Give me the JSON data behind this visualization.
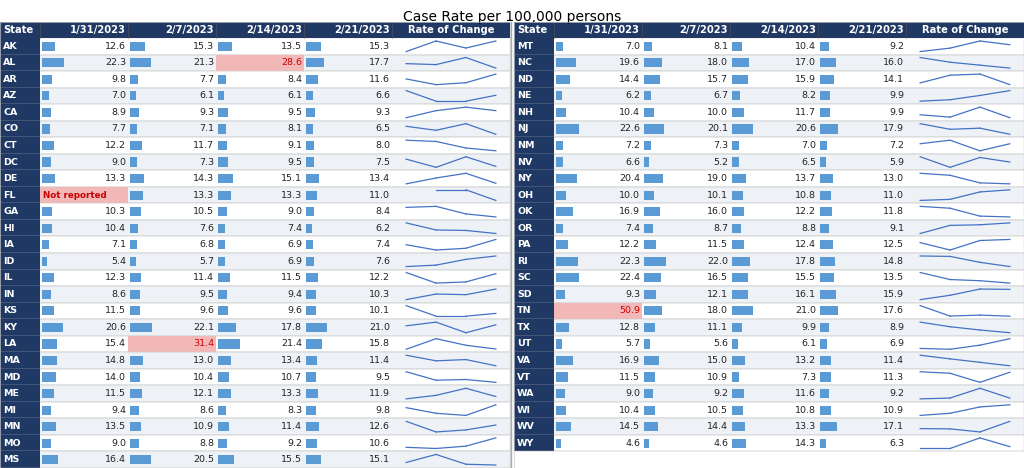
{
  "title": "Case Rate per 100,000 persons",
  "left_states": [
    {
      "state": "AK",
      "v1": 12.6,
      "v2": 15.3,
      "v3": 13.5,
      "v4": 15.3,
      "h1": false,
      "h2": false,
      "h3": false,
      "h4": false,
      "not_reported": false
    },
    {
      "state": "AL",
      "v1": 22.3,
      "v2": 21.3,
      "v3": 28.6,
      "v4": 17.7,
      "h1": false,
      "h2": false,
      "h3": true,
      "h4": false,
      "not_reported": false
    },
    {
      "state": "AR",
      "v1": 9.8,
      "v2": 7.7,
      "v3": 8.4,
      "v4": 11.6,
      "h1": false,
      "h2": false,
      "h3": false,
      "h4": false,
      "not_reported": false
    },
    {
      "state": "AZ",
      "v1": 7.0,
      "v2": 6.1,
      "v3": 6.1,
      "v4": 6.6,
      "h1": false,
      "h2": false,
      "h3": false,
      "h4": false,
      "not_reported": false
    },
    {
      "state": "CA",
      "v1": 8.9,
      "v2": 9.3,
      "v3": 9.5,
      "v4": 9.3,
      "h1": false,
      "h2": false,
      "h3": false,
      "h4": false,
      "not_reported": false
    },
    {
      "state": "CO",
      "v1": 7.7,
      "v2": 7.1,
      "v3": 8.1,
      "v4": 6.5,
      "h1": false,
      "h2": false,
      "h3": false,
      "h4": false,
      "not_reported": false
    },
    {
      "state": "CT",
      "v1": 12.2,
      "v2": 11.7,
      "v3": 9.1,
      "v4": 8.0,
      "h1": false,
      "h2": false,
      "h3": false,
      "h4": false,
      "not_reported": false
    },
    {
      "state": "DC",
      "v1": 9.0,
      "v2": 7.3,
      "v3": 9.5,
      "v4": 7.5,
      "h1": false,
      "h2": false,
      "h3": false,
      "h4": false,
      "not_reported": false
    },
    {
      "state": "DE",
      "v1": 13.3,
      "v2": 14.3,
      "v3": 15.1,
      "v4": 13.4,
      "h1": false,
      "h2": false,
      "h3": false,
      "h4": false,
      "not_reported": false
    },
    {
      "state": "FL",
      "v1": null,
      "v2": 13.3,
      "v3": 13.3,
      "v4": 11.0,
      "h1": true,
      "h2": false,
      "h3": false,
      "h4": false,
      "not_reported": true
    },
    {
      "state": "GA",
      "v1": 10.3,
      "v2": 10.5,
      "v3": 9.0,
      "v4": 8.4,
      "h1": false,
      "h2": false,
      "h3": false,
      "h4": false,
      "not_reported": false
    },
    {
      "state": "HI",
      "v1": 10.4,
      "v2": 7.6,
      "v3": 7.4,
      "v4": 6.2,
      "h1": false,
      "h2": false,
      "h3": false,
      "h4": false,
      "not_reported": false
    },
    {
      "state": "IA",
      "v1": 7.1,
      "v2": 6.8,
      "v3": 6.9,
      "v4": 7.4,
      "h1": false,
      "h2": false,
      "h3": false,
      "h4": false,
      "not_reported": false
    },
    {
      "state": "ID",
      "v1": 5.4,
      "v2": 5.7,
      "v3": 6.9,
      "v4": 7.6,
      "h1": false,
      "h2": false,
      "h3": false,
      "h4": false,
      "not_reported": false
    },
    {
      "state": "IL",
      "v1": 12.3,
      "v2": 11.4,
      "v3": 11.5,
      "v4": 12.2,
      "h1": false,
      "h2": false,
      "h3": false,
      "h4": false,
      "not_reported": false
    },
    {
      "state": "IN",
      "v1": 8.6,
      "v2": 9.5,
      "v3": 9.4,
      "v4": 10.3,
      "h1": false,
      "h2": false,
      "h3": false,
      "h4": false,
      "not_reported": false
    },
    {
      "state": "KS",
      "v1": 11.5,
      "v2": 9.6,
      "v3": 9.6,
      "v4": 10.1,
      "h1": false,
      "h2": false,
      "h3": false,
      "h4": false,
      "not_reported": false
    },
    {
      "state": "KY",
      "v1": 20.6,
      "v2": 22.1,
      "v3": 17.8,
      "v4": 21.0,
      "h1": false,
      "h2": false,
      "h3": false,
      "h4": false,
      "not_reported": false
    },
    {
      "state": "LA",
      "v1": 15.4,
      "v2": 31.4,
      "v3": 21.4,
      "v4": 15.8,
      "h1": false,
      "h2": true,
      "h3": false,
      "h4": false,
      "not_reported": false
    },
    {
      "state": "MA",
      "v1": 14.8,
      "v2": 13.0,
      "v3": 13.4,
      "v4": 11.4,
      "h1": false,
      "h2": false,
      "h3": false,
      "h4": false,
      "not_reported": false
    },
    {
      "state": "MD",
      "v1": 14.0,
      "v2": 10.4,
      "v3": 10.7,
      "v4": 9.5,
      "h1": false,
      "h2": false,
      "h3": false,
      "h4": false,
      "not_reported": false
    },
    {
      "state": "ME",
      "v1": 11.5,
      "v2": 12.1,
      "v3": 13.3,
      "v4": 11.9,
      "h1": false,
      "h2": false,
      "h3": false,
      "h4": false,
      "not_reported": false
    },
    {
      "state": "MI",
      "v1": 9.4,
      "v2": 8.6,
      "v3": 8.3,
      "v4": 9.8,
      "h1": false,
      "h2": false,
      "h3": false,
      "h4": false,
      "not_reported": false
    },
    {
      "state": "MN",
      "v1": 13.5,
      "v2": 10.9,
      "v3": 11.4,
      "v4": 12.6,
      "h1": false,
      "h2": false,
      "h3": false,
      "h4": false,
      "not_reported": false
    },
    {
      "state": "MO",
      "v1": 9.0,
      "v2": 8.8,
      "v3": 9.2,
      "v4": 10.6,
      "h1": false,
      "h2": false,
      "h3": false,
      "h4": false,
      "not_reported": false
    },
    {
      "state": "MS",
      "v1": 16.4,
      "v2": 20.5,
      "v3": 15.5,
      "v4": 15.1,
      "h1": false,
      "h2": false,
      "h3": false,
      "h4": false,
      "not_reported": false
    }
  ],
  "right_states": [
    {
      "state": "MT",
      "v1": 7.0,
      "v2": 8.1,
      "v3": 10.4,
      "v4": 9.2,
      "h1": false,
      "h2": false,
      "h3": false,
      "h4": false,
      "not_reported": false
    },
    {
      "state": "NC",
      "v1": 19.6,
      "v2": 18.0,
      "v3": 17.0,
      "v4": 16.0,
      "h1": false,
      "h2": false,
      "h3": false,
      "h4": false,
      "not_reported": false
    },
    {
      "state": "ND",
      "v1": 14.4,
      "v2": 15.7,
      "v3": 15.9,
      "v4": 14.1,
      "h1": false,
      "h2": false,
      "h3": false,
      "h4": false,
      "not_reported": false
    },
    {
      "state": "NE",
      "v1": 6.2,
      "v2": 6.7,
      "v3": 8.2,
      "v4": 9.9,
      "h1": false,
      "h2": false,
      "h3": false,
      "h4": false,
      "not_reported": false
    },
    {
      "state": "NH",
      "v1": 10.4,
      "v2": 10.0,
      "v3": 11.7,
      "v4": 9.9,
      "h1": false,
      "h2": false,
      "h3": false,
      "h4": false,
      "not_reported": false
    },
    {
      "state": "NJ",
      "v1": 22.6,
      "v2": 20.1,
      "v3": 20.6,
      "v4": 17.9,
      "h1": false,
      "h2": false,
      "h3": false,
      "h4": false,
      "not_reported": false
    },
    {
      "state": "NM",
      "v1": 7.2,
      "v2": 7.3,
      "v3": 7.0,
      "v4": 7.2,
      "h1": false,
      "h2": false,
      "h3": false,
      "h4": false,
      "not_reported": false
    },
    {
      "state": "NV",
      "v1": 6.6,
      "v2": 5.2,
      "v3": 6.5,
      "v4": 5.9,
      "h1": false,
      "h2": false,
      "h3": false,
      "h4": false,
      "not_reported": false
    },
    {
      "state": "NY",
      "v1": 20.4,
      "v2": 19.0,
      "v3": 13.7,
      "v4": 13.0,
      "h1": false,
      "h2": false,
      "h3": false,
      "h4": false,
      "not_reported": false
    },
    {
      "state": "OH",
      "v1": 10.0,
      "v2": 10.1,
      "v3": 10.8,
      "v4": 11.0,
      "h1": false,
      "h2": false,
      "h3": false,
      "h4": false,
      "not_reported": false
    },
    {
      "state": "OK",
      "v1": 16.9,
      "v2": 16.0,
      "v3": 12.2,
      "v4": 11.8,
      "h1": false,
      "h2": false,
      "h3": false,
      "h4": false,
      "not_reported": false
    },
    {
      "state": "OR",
      "v1": 7.4,
      "v2": 8.7,
      "v3": 8.8,
      "v4": 9.1,
      "h1": false,
      "h2": false,
      "h3": false,
      "h4": false,
      "not_reported": false
    },
    {
      "state": "PA",
      "v1": 12.2,
      "v2": 11.5,
      "v3": 12.4,
      "v4": 12.5,
      "h1": false,
      "h2": false,
      "h3": false,
      "h4": false,
      "not_reported": false
    },
    {
      "state": "RI",
      "v1": 22.3,
      "v2": 22.0,
      "v3": 17.8,
      "v4": 14.8,
      "h1": false,
      "h2": false,
      "h3": false,
      "h4": false,
      "not_reported": false
    },
    {
      "state": "SC",
      "v1": 22.4,
      "v2": 16.5,
      "v3": 15.5,
      "v4": 13.5,
      "h1": false,
      "h2": false,
      "h3": false,
      "h4": false,
      "not_reported": false
    },
    {
      "state": "SD",
      "v1": 9.3,
      "v2": 12.1,
      "v3": 16.1,
      "v4": 15.9,
      "h1": false,
      "h2": false,
      "h3": false,
      "h4": false,
      "not_reported": false
    },
    {
      "state": "TN",
      "v1": 50.9,
      "v2": 18.0,
      "v3": 21.0,
      "v4": 17.6,
      "h1": true,
      "h2": false,
      "h3": false,
      "h4": false,
      "not_reported": false
    },
    {
      "state": "TX",
      "v1": 12.8,
      "v2": 11.1,
      "v3": 9.9,
      "v4": 8.9,
      "h1": false,
      "h2": false,
      "h3": false,
      "h4": false,
      "not_reported": false
    },
    {
      "state": "UT",
      "v1": 5.7,
      "v2": 5.6,
      "v3": 6.1,
      "v4": 6.9,
      "h1": false,
      "h2": false,
      "h3": false,
      "h4": false,
      "not_reported": false
    },
    {
      "state": "VA",
      "v1": 16.9,
      "v2": 15.0,
      "v3": 13.2,
      "v4": 11.4,
      "h1": false,
      "h2": false,
      "h3": false,
      "h4": false,
      "not_reported": false
    },
    {
      "state": "VT",
      "v1": 11.5,
      "v2": 10.9,
      "v3": 7.3,
      "v4": 11.3,
      "h1": false,
      "h2": false,
      "h3": false,
      "h4": false,
      "not_reported": false
    },
    {
      "state": "WA",
      "v1": 9.0,
      "v2": 9.2,
      "v3": 11.6,
      "v4": 9.2,
      "h1": false,
      "h2": false,
      "h3": false,
      "h4": false,
      "not_reported": false
    },
    {
      "state": "WI",
      "v1": 10.4,
      "v2": 10.5,
      "v3": 10.8,
      "v4": 10.9,
      "h1": false,
      "h2": false,
      "h3": false,
      "h4": false,
      "not_reported": false
    },
    {
      "state": "WV",
      "v1": 14.5,
      "v2": 14.4,
      "v3": 13.3,
      "v4": 17.1,
      "h1": false,
      "h2": false,
      "h3": false,
      "h4": false,
      "not_reported": false
    },
    {
      "state": "WY",
      "v1": 4.6,
      "v2": 4.6,
      "v3": 14.3,
      "v4": 6.3,
      "h1": false,
      "h2": false,
      "h3": false,
      "h4": false,
      "not_reported": false
    }
  ],
  "bar_color": "#5b9bd5",
  "highlight_color": "#f2b8b8",
  "header_bg": "#1f3864",
  "row_color_even": "#ffffff",
  "row_color_odd": "#eef2f7",
  "border_color": "#c8c8c8",
  "sparkline_color": "#4472c4",
  "bar_max": 35,
  "title_fontsize": 10,
  "cell_fontsize": 6.8,
  "header_fontsize": 7.2
}
